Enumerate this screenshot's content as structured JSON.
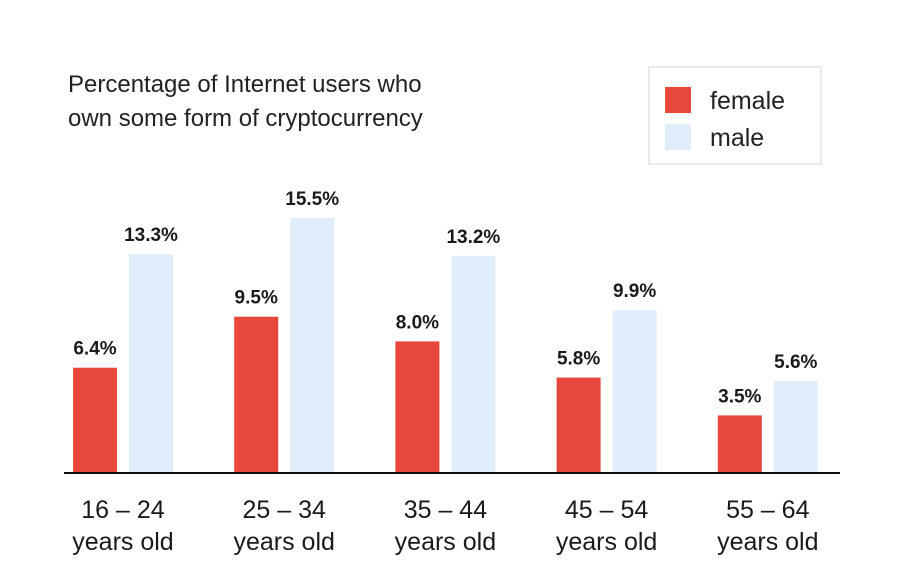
{
  "chart_data": {
    "type": "bar",
    "title_lines": [
      "Percentage of Internet users who",
      "own some form of cryptocurrency"
    ],
    "categories": [
      [
        "16 – 24",
        "years old"
      ],
      [
        "25 – 34",
        "years old"
      ],
      [
        "35 – 44",
        "years old"
      ],
      [
        "45 – 54",
        "years old"
      ],
      [
        "55 – 64",
        "years old"
      ]
    ],
    "series": [
      {
        "name": "female",
        "color": "#e8473b",
        "values": [
          6.4,
          9.5,
          8.0,
          5.8,
          3.5
        ],
        "labels": [
          "6.4%",
          "9.5%",
          "8.0%",
          "5.8%",
          "3.5%"
        ]
      },
      {
        "name": "male",
        "color": "#dfeefa",
        "values": [
          13.3,
          15.5,
          13.2,
          9.9,
          5.6
        ],
        "labels": [
          "13.3%",
          "15.5%",
          "13.2%",
          "9.9%",
          "5.6%"
        ]
      }
    ],
    "value_unit": "%",
    "ylim": [
      0,
      15.5
    ],
    "grid": false,
    "legend_position": "top-right",
    "axis_color": "#111111"
  }
}
